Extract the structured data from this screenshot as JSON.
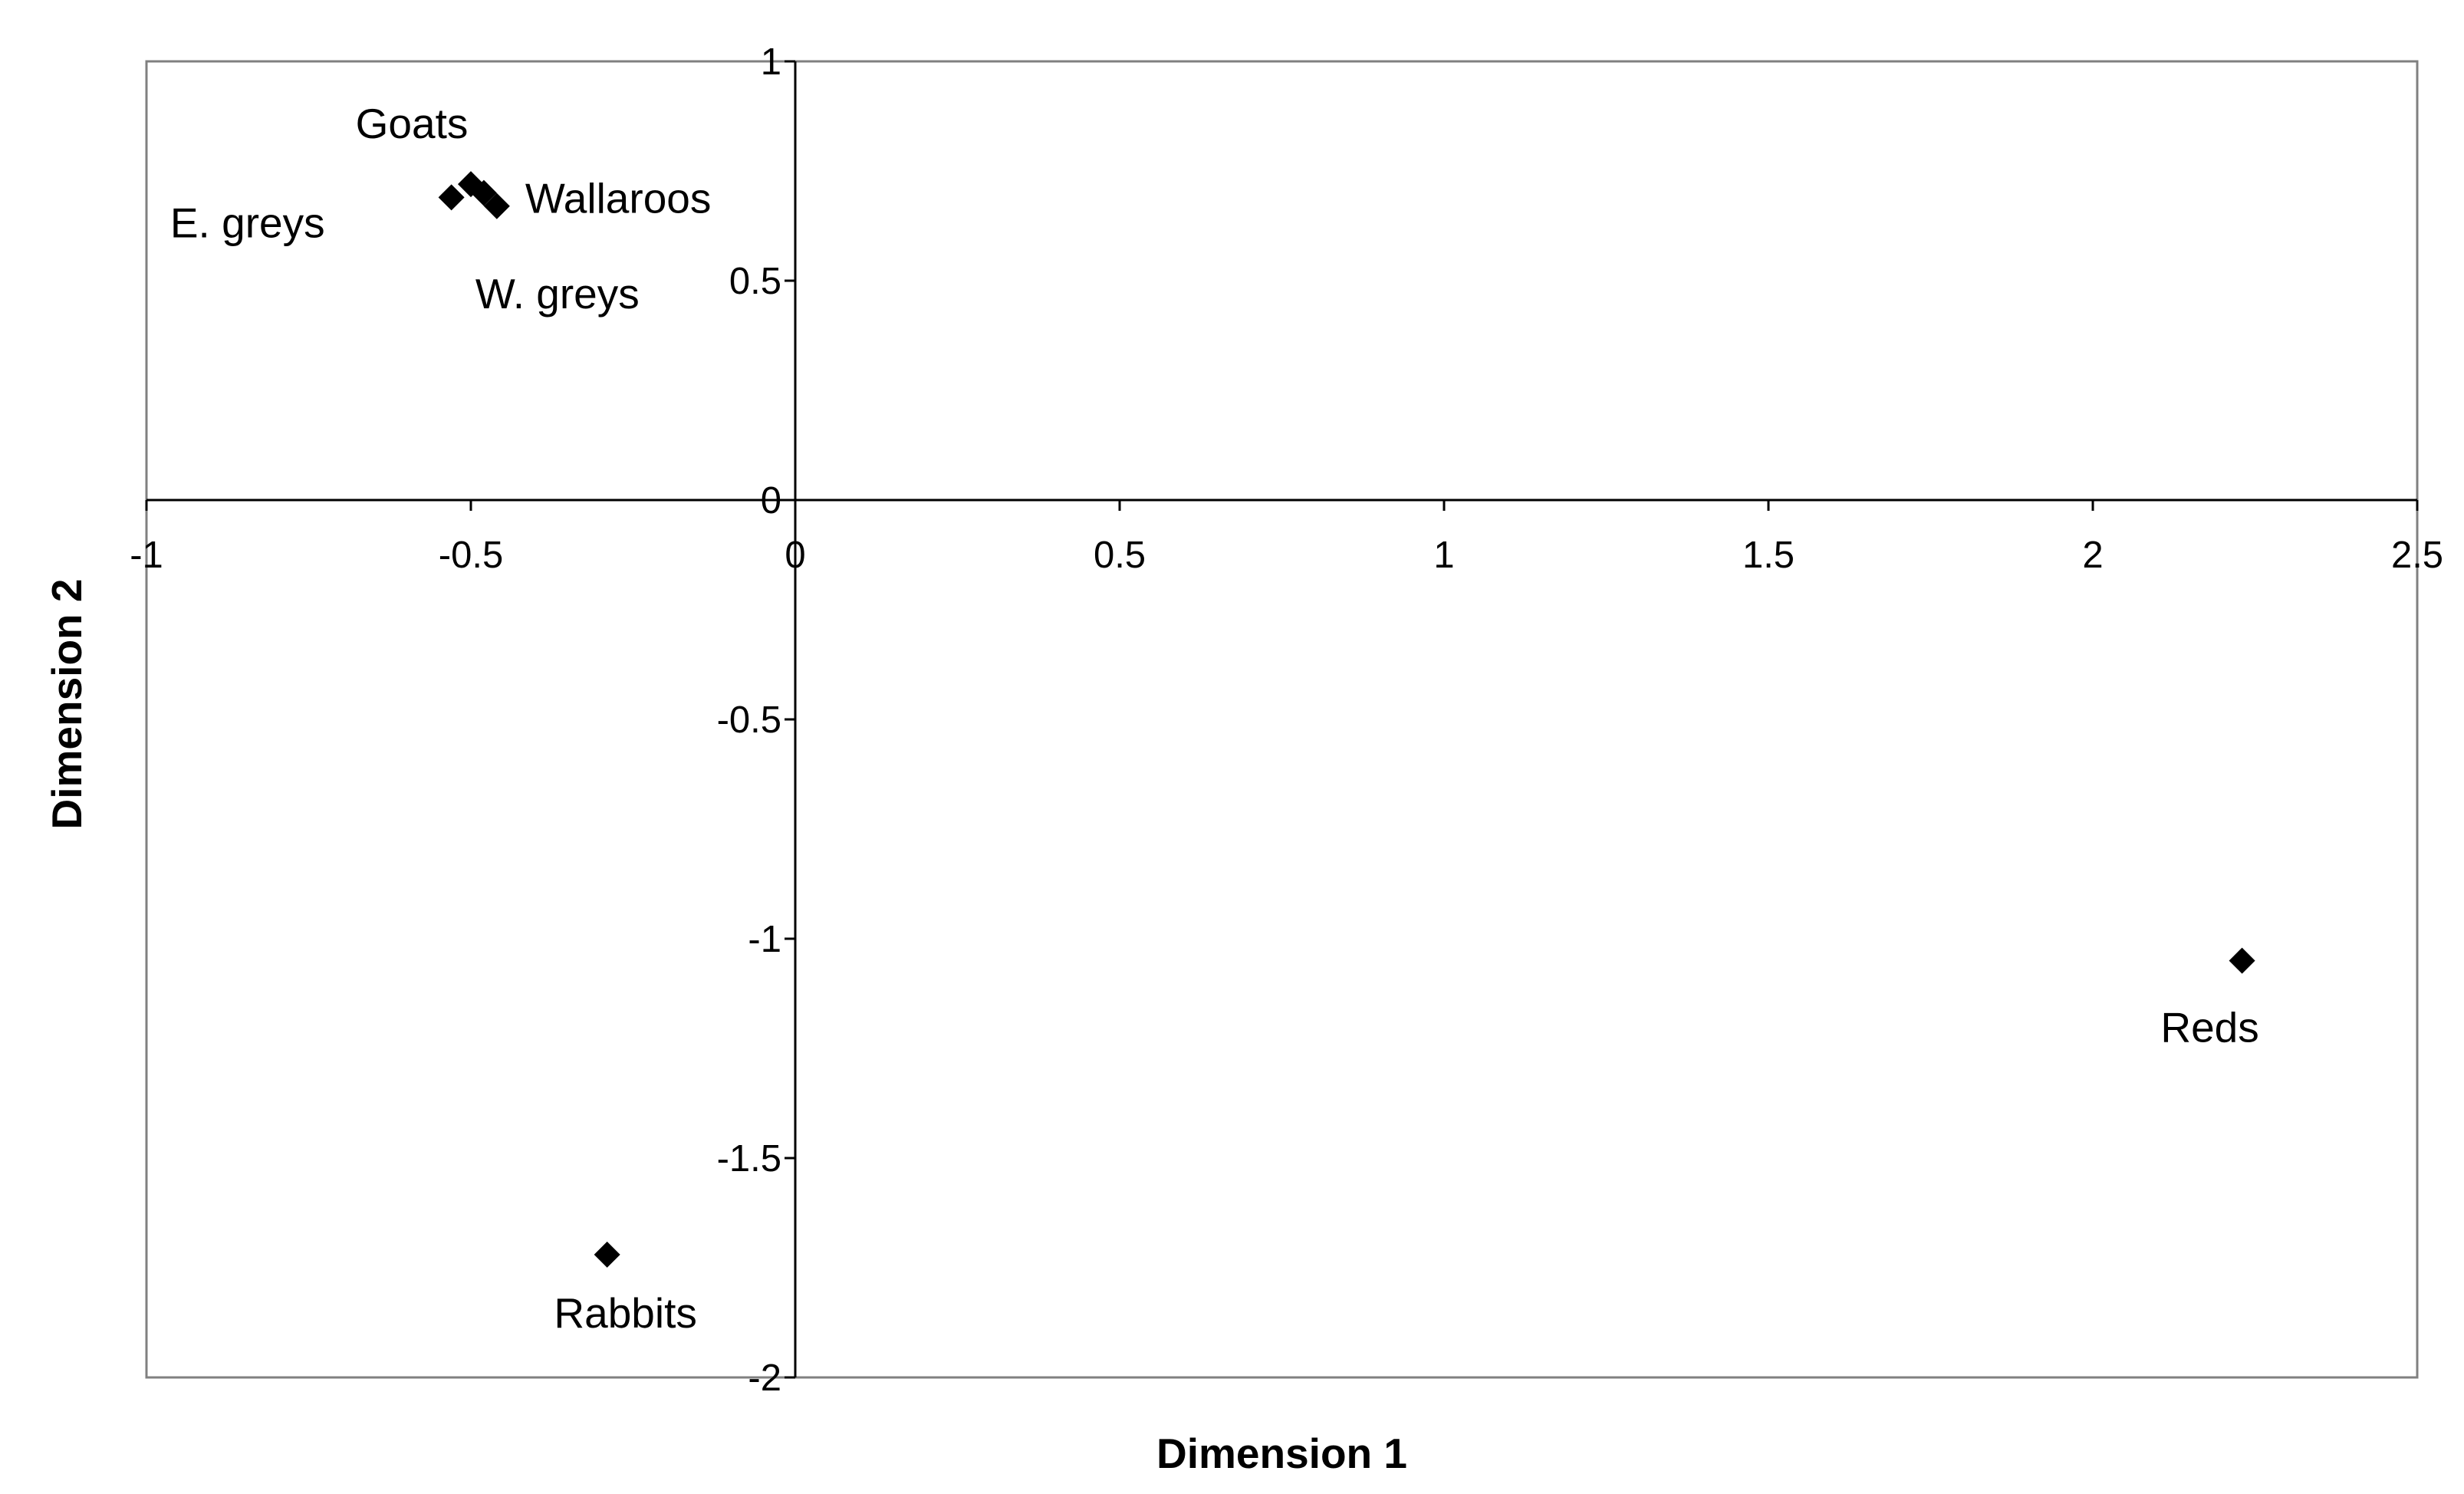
{
  "chart_data": {
    "type": "scatter",
    "title": "",
    "xlabel": "Dimension  1",
    "ylabel": "Dimension  2",
    "xlim": [
      -1,
      2.5
    ],
    "ylim": [
      -2,
      1
    ],
    "xticks": [
      -1,
      -0.5,
      0,
      0.5,
      1,
      1.5,
      2,
      2.5
    ],
    "xtick_labels": [
      "-1",
      "-0.5",
      "0",
      "0.5",
      "1",
      "1.5",
      "2",
      "2.5"
    ],
    "yticks": [
      1,
      0.5,
      0,
      -0.5,
      -1,
      -1.5,
      -2
    ],
    "ytick_labels": [
      "1",
      "0.5",
      "0",
      "-0.5",
      "-1",
      "-1.5",
      "-2"
    ],
    "grid": false,
    "legend": "none",
    "marker": "diamond",
    "colors": {
      "marker": "#000000",
      "axis": "#000000",
      "frame": "#808080",
      "background": "#ffffff"
    },
    "points": [
      {
        "label": "E. greys",
        "x": -0.53,
        "y": 0.69
      },
      {
        "label": "Goats",
        "x": -0.5,
        "y": 0.72
      },
      {
        "label": "Wallaroos",
        "x": -0.48,
        "y": 0.7
      },
      {
        "label": "W. greys",
        "x": -0.46,
        "y": 0.67
      },
      {
        "label": "Rabbits",
        "x": -0.29,
        "y": -1.72
      },
      {
        "label": "Reds",
        "x": 2.23,
        "y": -1.05
      }
    ]
  }
}
